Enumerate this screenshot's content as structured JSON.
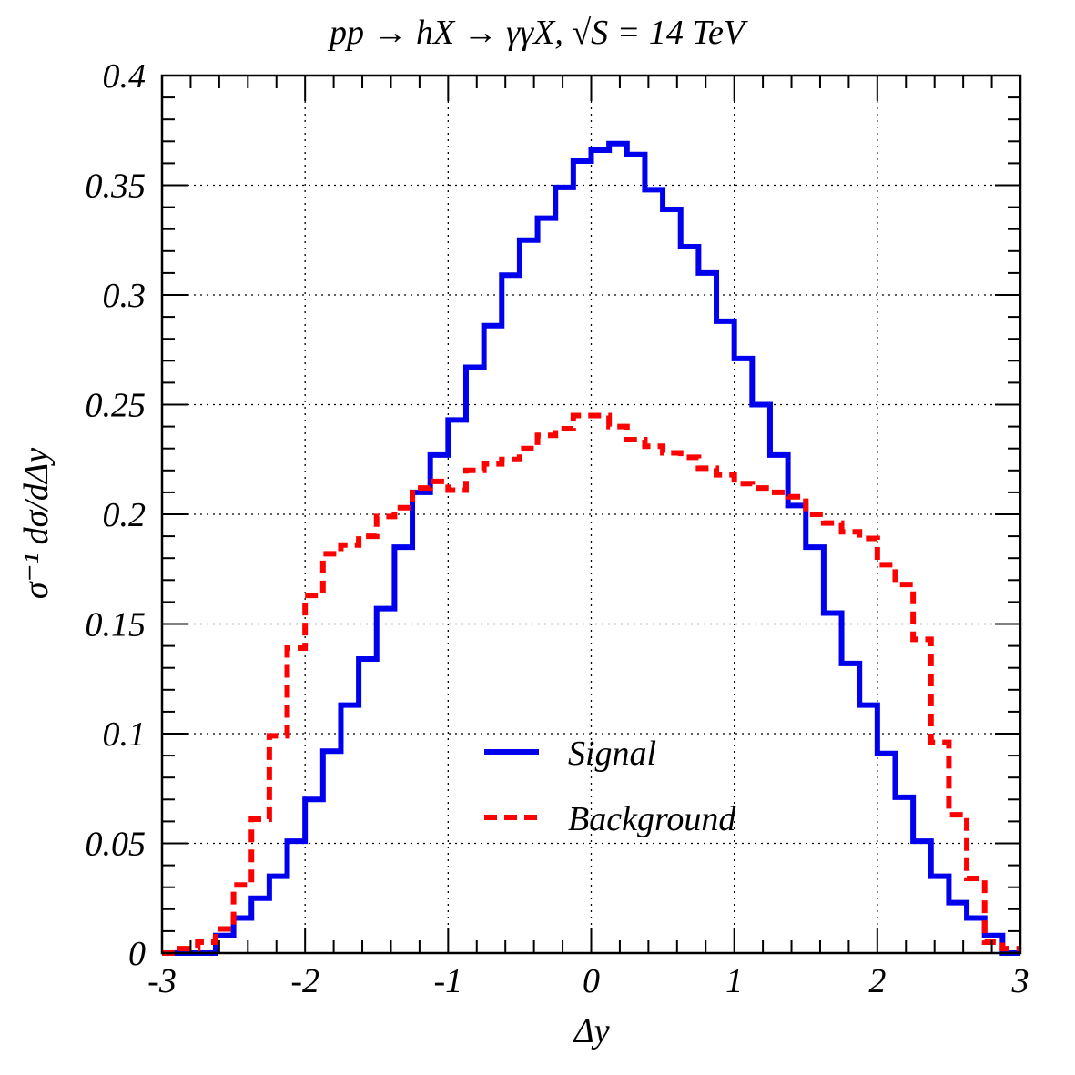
{
  "chart_data": {
    "type": "line",
    "title": "pp → hX → γγX, √S = 14 TeV",
    "xlabel": "Δy",
    "ylabel": "σ⁻¹ dσ/dΔy",
    "xlim": [
      -3,
      3
    ],
    "ylim": [
      0,
      0.4
    ],
    "grid": true,
    "legend_position": "center-bottom",
    "x_ticks": [
      "-3",
      "-2",
      "-1",
      "0",
      "1",
      "2",
      "3"
    ],
    "y_ticks": [
      "0",
      "0.05",
      "0.1",
      "0.15",
      "0.2",
      "0.25",
      "0.3",
      "0.35",
      "0.4"
    ],
    "bin_edges": [
      -3.0,
      -2.875,
      -2.75,
      -2.625,
      -2.5,
      -2.375,
      -2.25,
      -2.125,
      -2.0,
      -1.875,
      -1.75,
      -1.625,
      -1.5,
      -1.375,
      -1.25,
      -1.125,
      -1.0,
      -0.875,
      -0.75,
      -0.625,
      -0.5,
      -0.375,
      -0.25,
      -0.125,
      0.0,
      0.125,
      0.25,
      0.375,
      0.5,
      0.625,
      0.75,
      0.875,
      1.0,
      1.125,
      1.25,
      1.375,
      1.5,
      1.625,
      1.75,
      1.875,
      2.0,
      2.125,
      2.25,
      2.375,
      2.5,
      2.625,
      2.75,
      2.875,
      3.0
    ],
    "series": [
      {
        "name": "Signal",
        "color": "#0000ee",
        "style": "solid",
        "values": [
          0,
          0,
          0,
          0.008,
          0.016,
          0.025,
          0.035,
          0.051,
          0.07,
          0.092,
          0.113,
          0.134,
          0.157,
          0.185,
          0.21,
          0.227,
          0.243,
          0.267,
          0.286,
          0.309,
          0.325,
          0.335,
          0.349,
          0.361,
          0.366,
          0.369,
          0.364,
          0.348,
          0.339,
          0.322,
          0.31,
          0.288,
          0.271,
          0.25,
          0.227,
          0.204,
          0.185,
          0.155,
          0.132,
          0.113,
          0.091,
          0.071,
          0.051,
          0.035,
          0.023,
          0.016,
          0.008,
          0,
          0
        ]
      },
      {
        "name": "Background",
        "color": "#ff0000",
        "style": "dashed",
        "values": [
          0,
          0.002,
          0.005,
          0.011,
          0.031,
          0.061,
          0.099,
          0.139,
          0.163,
          0.182,
          0.186,
          0.19,
          0.199,
          0.203,
          0.212,
          0.215,
          0.211,
          0.22,
          0.223,
          0.225,
          0.23,
          0.236,
          0.239,
          0.245,
          0.245,
          0.24,
          0.234,
          0.231,
          0.228,
          0.226,
          0.221,
          0.218,
          0.214,
          0.212,
          0.21,
          0.208,
          0.2,
          0.196,
          0.192,
          0.189,
          0.177,
          0.168,
          0.143,
          0.096,
          0.063,
          0.034,
          0.005,
          0.002,
          0
        ]
      }
    ]
  }
}
